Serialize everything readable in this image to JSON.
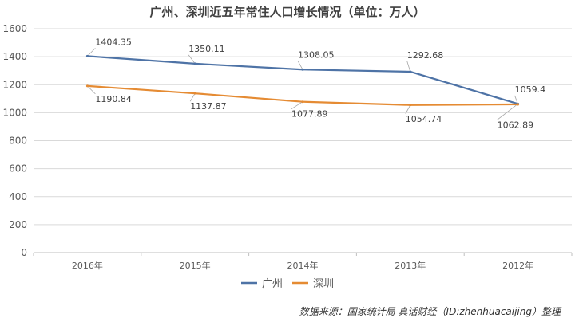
{
  "chart_data": {
    "type": "line",
    "title": "广州、深圳近五年常住人口增长情况（单位：万人）",
    "categories": [
      "2016年",
      "2015年",
      "2014年",
      "2013年",
      "2012年"
    ],
    "ylim": [
      0,
      1600
    ],
    "yticks": [
      "0",
      "200",
      "400",
      "600",
      "800",
      "1000",
      "1200",
      "1400",
      "1600"
    ],
    "grid": true,
    "legend_position": "bottom",
    "series": [
      {
        "name": "广州",
        "color": "#4E73A6",
        "values": [
          1404.35,
          1350.11,
          1308.05,
          1292.68,
          1062.89
        ],
        "labels": [
          "1404.35",
          "1350.11",
          "1308.05",
          "1292.68",
          "1062.89"
        ]
      },
      {
        "name": "深圳",
        "color": "#E58B33",
        "values": [
          1190.84,
          1137.87,
          1077.89,
          1054.74,
          1059.4
        ],
        "labels": [
          "1190.84",
          "1137.87",
          "1077.89",
          "1054.74",
          "1059.4"
        ]
      }
    ]
  },
  "source_note": "数据来源：国家统计局 真话财经（ID:zhenhuacaijing）整理"
}
